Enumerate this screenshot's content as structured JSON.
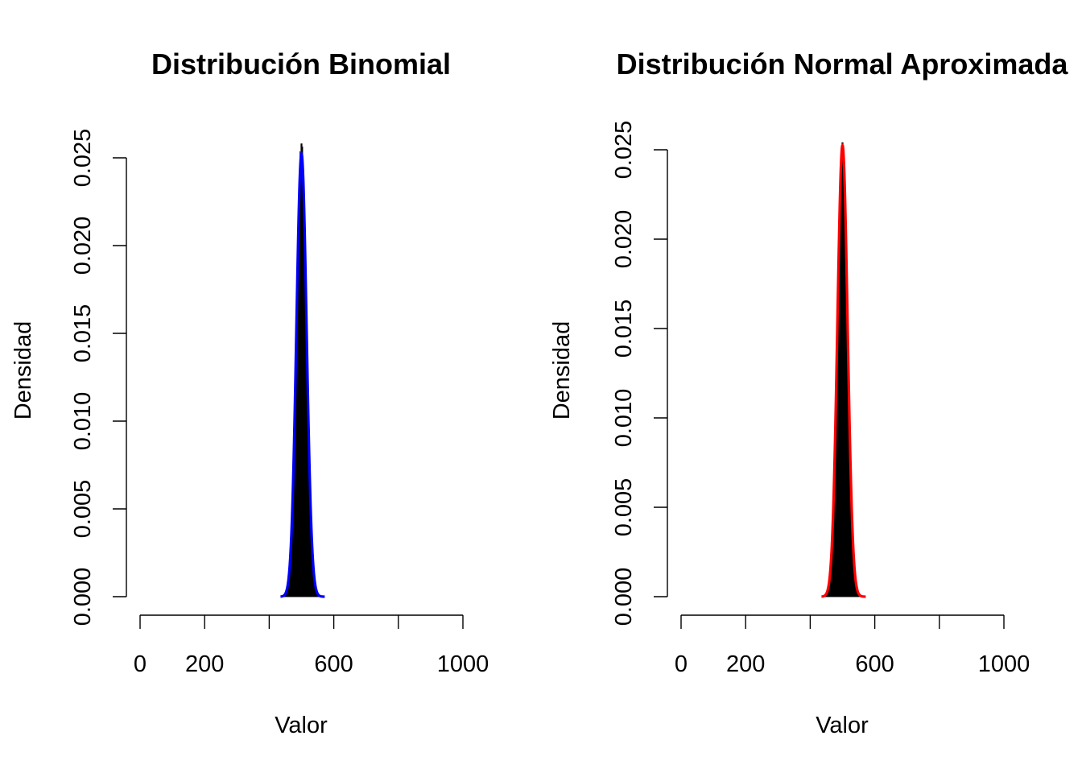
{
  "chart_data": [
    {
      "type": "histogram",
      "title": "Distribución Binomial",
      "xlabel": "Valor",
      "ylabel": "Densidad",
      "xlim": [
        0,
        1000
      ],
      "ylim": [
        0,
        0.025
      ],
      "x_ticks": [
        0,
        200,
        400,
        600,
        800,
        1000
      ],
      "x_tick_labels": [
        "0",
        "200",
        "",
        "600",
        "",
        "1000"
      ],
      "y_ticks": [
        0,
        0.005,
        0.01,
        0.015,
        0.02,
        0.025
      ],
      "y_tick_labels": [
        "0.000",
        "0.005",
        "0.010",
        "0.015",
        "0.020",
        "0.025"
      ],
      "histogram": {
        "mean": 500,
        "sd": 15.8,
        "peak_density": 0.0258,
        "fill": "#000000"
      },
      "curve": {
        "mean": 500,
        "sd": 15.8,
        "color": "#0000ff",
        "x_range": [
          435,
          572
        ]
      }
    },
    {
      "type": "histogram",
      "title": "Distribución Normal Aproximada",
      "xlabel": "Valor",
      "ylabel": "Densidad",
      "xlim": [
        0,
        1000
      ],
      "ylim": [
        0,
        0.025
      ],
      "x_ticks": [
        0,
        200,
        400,
        600,
        800,
        1000
      ],
      "x_tick_labels": [
        "0",
        "200",
        "",
        "600",
        "",
        "1000"
      ],
      "y_ticks": [
        0,
        0.005,
        0.01,
        0.015,
        0.02,
        0.025
      ],
      "y_tick_labels": [
        "0.000",
        "0.005",
        "0.010",
        "0.015",
        "0.020",
        "0.025"
      ],
      "histogram": {
        "mean": 500,
        "sd": 15.8,
        "peak_density": 0.0254,
        "fill": "#000000"
      },
      "curve": {
        "mean": 500,
        "sd": 15.8,
        "color": "#ff0000",
        "x_range": [
          435,
          572
        ]
      }
    }
  ]
}
